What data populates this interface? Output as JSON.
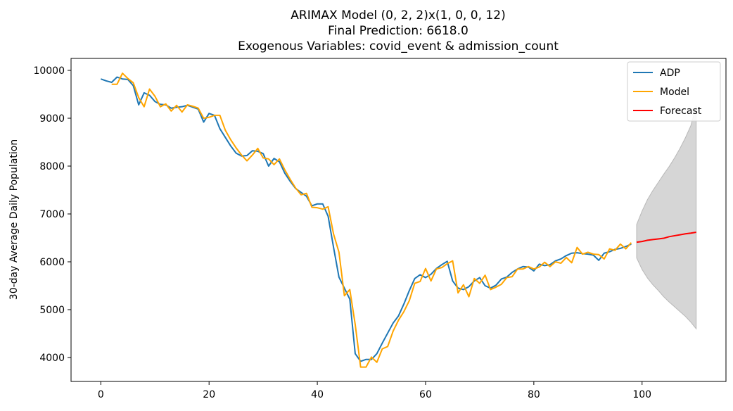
{
  "chart_data": {
    "type": "line",
    "title_lines": [
      "ARIMAX Model (0, 2, 2)x(1, 0, 0, 12)",
      "Final Prediction: 6618.0",
      "Exogenous Variables: covid_event & admission_count"
    ],
    "xlabel": "",
    "ylabel": "30-day Average Daily Population",
    "xlim": [
      -5.5,
      115.5
    ],
    "ylim": [
      3500,
      10250
    ],
    "x_ticks": [
      0,
      20,
      40,
      60,
      80,
      100
    ],
    "y_ticks": [
      4000,
      5000,
      6000,
      7000,
      8000,
      9000,
      10000
    ],
    "legend_position": "top-right",
    "series": [
      {
        "name": "ADP",
        "color": "#1f77b4",
        "x_start": 0,
        "values": [
          9820,
          9780,
          9750,
          9860,
          9820,
          9810,
          9680,
          9280,
          9530,
          9480,
          9350,
          9290,
          9280,
          9210,
          9230,
          9240,
          9270,
          9230,
          9190,
          8920,
          9100,
          9060,
          8780,
          8600,
          8420,
          8270,
          8210,
          8220,
          8320,
          8310,
          8260,
          8000,
          8160,
          8090,
          7850,
          7680,
          7530,
          7450,
          7370,
          7170,
          7210,
          7210,
          6950,
          6300,
          5680,
          5450,
          5220,
          4080,
          3920,
          3960,
          3960,
          4080,
          4300,
          4510,
          4720,
          4870,
          5120,
          5400,
          5650,
          5730,
          5670,
          5740,
          5860,
          5940,
          6010,
          5600,
          5450,
          5420,
          5480,
          5600,
          5670,
          5500,
          5450,
          5510,
          5640,
          5680,
          5780,
          5850,
          5900,
          5890,
          5810,
          5950,
          5920,
          5940,
          6020,
          6060,
          6130,
          6180,
          6190,
          6170,
          6160,
          6140,
          6030,
          6180,
          6210,
          6260,
          6280,
          6320,
          6370
        ],
        "line_width": 2
      },
      {
        "name": "Model",
        "color": "#ffa500",
        "x_start": 0,
        "values": [
          null,
          null,
          9710,
          9710,
          9940,
          9830,
          9740,
          9430,
          9240,
          9610,
          9460,
          9240,
          9300,
          9150,
          9270,
          9130,
          9280,
          9250,
          9210,
          9000,
          9020,
          9060,
          9060,
          8750,
          8550,
          8380,
          8230,
          8110,
          8230,
          8370,
          8170,
          8150,
          8030,
          8150,
          7920,
          7720,
          7540,
          7400,
          7430,
          7140,
          7130,
          7100,
          7150,
          6580,
          6200,
          5290,
          5420,
          4690,
          3800,
          3800,
          4010,
          3900,
          4180,
          4230,
          4550,
          4780,
          4960,
          5190,
          5550,
          5590,
          5860,
          5600,
          5850,
          5880,
          5960,
          6020,
          5350,
          5520,
          5270,
          5650,
          5550,
          5720,
          5420,
          5470,
          5530,
          5670,
          5690,
          5850,
          5850,
          5900,
          5850,
          5890,
          5990,
          5900,
          6000,
          5970,
          6090,
          5980,
          6300,
          6160,
          6200,
          6160,
          6150,
          6060,
          6270,
          6240,
          6370,
          6270,
          6400
        ],
        "line_width": 2
      },
      {
        "name": "Forecast",
        "color": "#ff0000",
        "x": [
          99,
          100,
          101,
          102,
          103,
          104,
          105,
          106,
          107,
          108,
          109,
          110
        ],
        "values": [
          6410,
          6425,
          6450,
          6465,
          6478,
          6492,
          6525,
          6545,
          6565,
          6585,
          6600,
          6618
        ],
        "line_width": 2
      }
    ],
    "confidence_band": {
      "color": "#cccccc",
      "opacity": 0.8,
      "x": [
        99,
        100,
        101,
        102,
        103,
        104,
        105,
        106,
        107,
        108,
        109,
        110
      ],
      "upper": [
        6780,
        7060,
        7300,
        7490,
        7660,
        7830,
        7990,
        8170,
        8370,
        8590,
        8840,
        9260
      ],
      "lower": [
        6080,
        5840,
        5660,
        5520,
        5400,
        5270,
        5160,
        5060,
        4960,
        4860,
        4740,
        4600
      ]
    }
  }
}
